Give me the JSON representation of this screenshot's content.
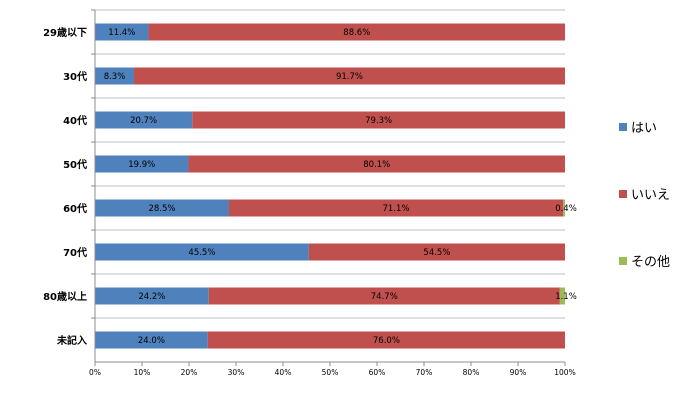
{
  "chart_data": {
    "type": "bar",
    "orientation": "horizontal",
    "stacked": "percent",
    "categories": [
      "29歳以下",
      "30代",
      "40代",
      "50代",
      "60代",
      "70代",
      "80歳以上",
      "未記入"
    ],
    "series": [
      {
        "name": "はい",
        "color": "#4f81bd",
        "values": [
          11.4,
          8.3,
          20.7,
          19.9,
          28.5,
          45.5,
          24.2,
          24.0
        ],
        "labels": [
          "11.4%",
          "8.3%",
          "20.7%",
          "19.9%",
          "28.5%",
          "45.5%",
          "24.2%",
          "24.0%"
        ]
      },
      {
        "name": "いいえ",
        "color": "#c0504d",
        "values": [
          88.6,
          91.7,
          79.3,
          80.1,
          71.1,
          54.5,
          74.7,
          76.0
        ],
        "labels": [
          "88.6%",
          "91.7%",
          "79.3%",
          "80.1%",
          "71.1%",
          "54.5%",
          "74.7%",
          "76.0%"
        ]
      },
      {
        "name": "その他",
        "color": "#9bbb59",
        "values": [
          0,
          0,
          0,
          0,
          0.4,
          0,
          1.1,
          0
        ],
        "labels": [
          "",
          "",
          "",
          "",
          "0.4%",
          "",
          "1.1%",
          ""
        ]
      }
    ],
    "xlim": [
      0,
      100
    ],
    "xticks": [
      "0%",
      "10%",
      "20%",
      "30%",
      "40%",
      "50%",
      "60%",
      "70%",
      "80%",
      "90%",
      "100%"
    ],
    "grid": true,
    "legend_position": "right"
  }
}
